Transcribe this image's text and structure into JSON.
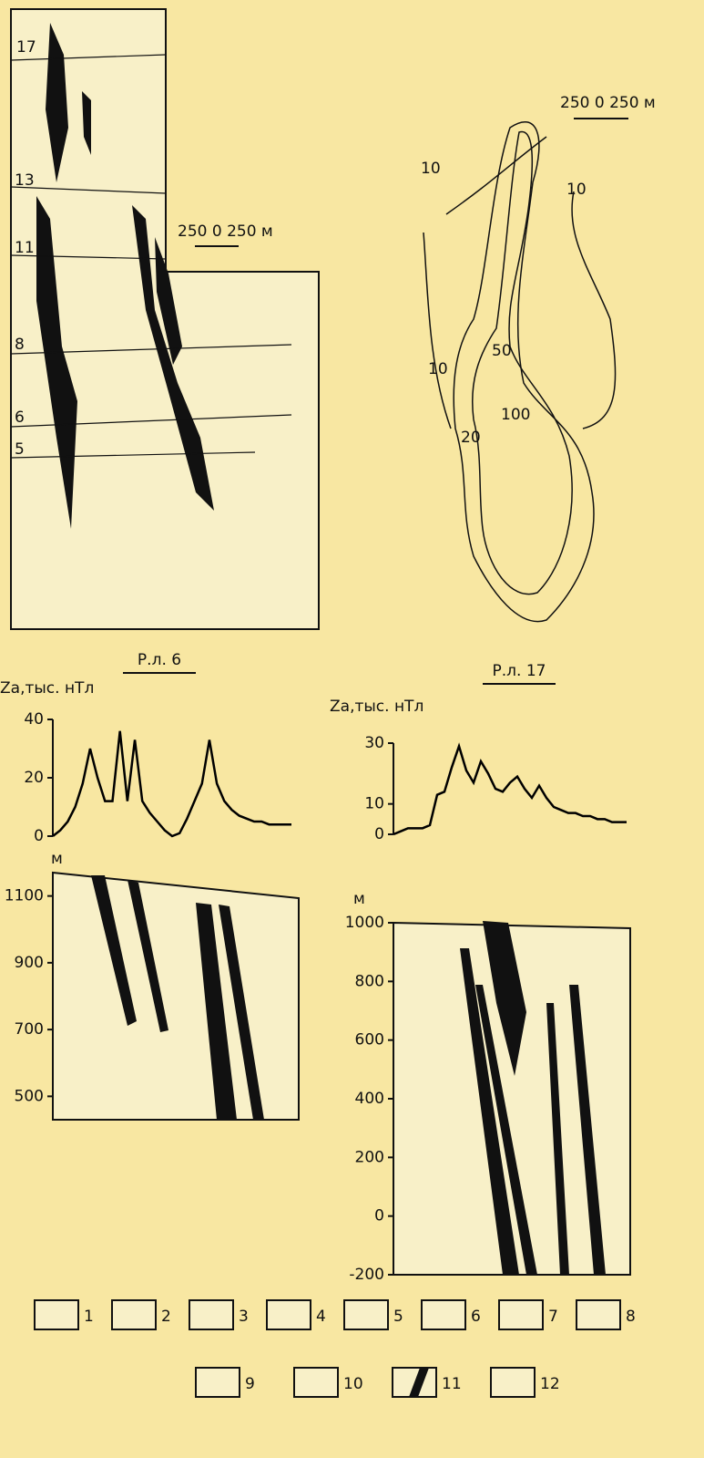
{
  "map_left": {
    "profile_labels": [
      "17",
      "13",
      "11",
      "8",
      "6",
      "5"
    ],
    "scale": "250 0 250 м"
  },
  "map_right": {
    "scale": "250 0 250 м",
    "contour_labels": [
      "10",
      "10",
      "10",
      "20",
      "50",
      "100"
    ]
  },
  "chart_data": [
    {
      "type": "line",
      "title": "Р.л. 6",
      "y_label": "Za,тыс. нТл",
      "color": "#000000",
      "values": [
        0,
        2,
        5,
        10,
        18,
        30,
        20,
        12,
        12,
        36,
        12,
        33,
        12,
        8,
        5,
        2,
        0,
        1,
        6,
        12,
        18,
        33,
        18,
        12,
        9,
        7,
        6,
        5,
        5,
        4,
        4,
        4,
        4
      ],
      "ylim": [
        0,
        40
      ],
      "yticks": [
        0,
        20,
        40
      ]
    },
    {
      "type": "line",
      "title": "Р.л. 17",
      "y_label": "Za,тыс. нТл",
      "color": "#000000",
      "values": [
        0,
        1,
        2,
        2,
        2,
        3,
        13,
        14,
        22,
        29,
        21,
        17,
        24,
        20,
        15,
        14,
        17,
        19,
        15,
        12,
        16,
        12,
        9,
        8,
        7,
        7,
        6,
        6,
        5,
        5,
        4,
        4,
        4
      ],
      "ylim": [
        0,
        30
      ],
      "yticks": [
        0,
        10,
        30
      ]
    },
    {
      "type": "section",
      "y_label": "м",
      "ylim": [
        430,
        1170
      ],
      "yticks": [
        1100,
        900,
        700,
        500
      ]
    },
    {
      "type": "section",
      "y_label": "м",
      "ylim": [
        -200,
        1000
      ],
      "yticks": [
        1000,
        800,
        600,
        400,
        200,
        0,
        -200
      ]
    }
  ],
  "legend": {
    "items": [
      "1",
      "2",
      "3",
      "4",
      "5",
      "6",
      "7",
      "8",
      "9",
      "10",
      "11",
      "12"
    ]
  }
}
